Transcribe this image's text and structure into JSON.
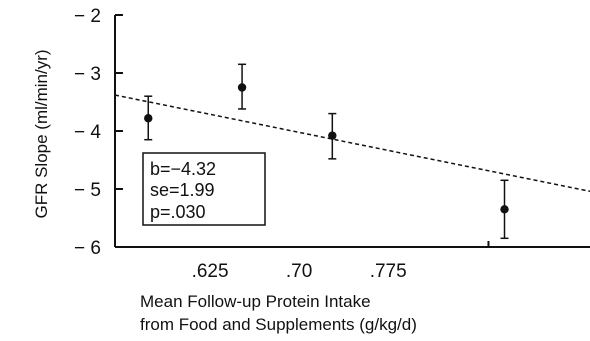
{
  "chart_data": {
    "type": "scatter",
    "title": "",
    "ylabel": "GFR Slope (ml/min/yr)",
    "xlabel_lines": [
      "Mean Follow-up Protein Intake",
      "from Food and Supplements (g/kg/d)"
    ],
    "ylim": [
      -6,
      -2
    ],
    "xlim": [
      0.55,
      0.95
    ],
    "yticks": [
      {
        "value": -2,
        "label": "− 2"
      },
      {
        "value": -3,
        "label": "− 3"
      },
      {
        "value": -4,
        "label": "− 4"
      },
      {
        "value": -5,
        "label": "− 5"
      },
      {
        "value": -6,
        "label": "− 6"
      }
    ],
    "xticks": [
      {
        "value": 0.625,
        "label": ".625"
      },
      {
        "value": 0.7,
        "label": ".70"
      },
      {
        "value": 0.775,
        "label": ".775"
      }
    ],
    "points": [
      {
        "x": 0.578,
        "y": -3.78,
        "y_low": -4.15,
        "y_high": -3.4
      },
      {
        "x": 0.657,
        "y": -3.25,
        "y_low": -3.62,
        "y_high": -2.85
      },
      {
        "x": 0.733,
        "y": -4.08,
        "y_low": -4.48,
        "y_high": -3.7
      },
      {
        "x": 0.878,
        "y": -5.35,
        "y_low": -5.85,
        "y_high": -4.85
      }
    ],
    "trend_line": {
      "x": [
        0.55,
        0.95
      ],
      "y": [
        -3.38,
        -5.04
      ]
    },
    "stats_box": [
      "b=−4.32",
      "se=1.99",
      "p=.030"
    ],
    "grid": false,
    "legend": "none"
  }
}
